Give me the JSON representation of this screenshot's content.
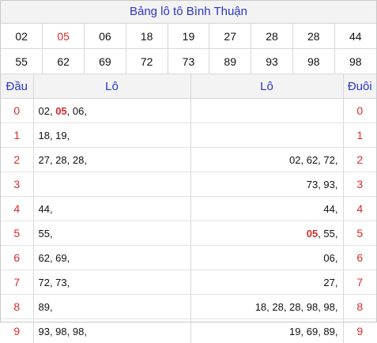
{
  "title": "Bảng lô tô Bình Thuận",
  "numbers_row1": [
    "02",
    "05",
    "06",
    "18",
    "19",
    "27",
    "28",
    "28",
    "44"
  ],
  "numbers_row2": [
    "55",
    "62",
    "69",
    "72",
    "73",
    "89",
    "93",
    "98",
    "98"
  ],
  "highlight": "05",
  "headers": {
    "dau": "Đầu",
    "lo_left": "Lô",
    "lo_right": "Lô",
    "duoi": "Đuôi"
  },
  "rows": [
    {
      "dau": "0",
      "lo_left": "02, 05, 06,",
      "lo_right": "",
      "duoi": "0"
    },
    {
      "dau": "1",
      "lo_left": "18, 19,",
      "lo_right": "",
      "duoi": "1"
    },
    {
      "dau": "2",
      "lo_left": "27, 28, 28,",
      "lo_right": "02, 62, 72,",
      "duoi": "2"
    },
    {
      "dau": "3",
      "lo_left": "",
      "lo_right": "73, 93,",
      "duoi": "3"
    },
    {
      "dau": "4",
      "lo_left": "44,",
      "lo_right": "44,",
      "duoi": "4"
    },
    {
      "dau": "5",
      "lo_left": "55,",
      "lo_right": "05, 55,",
      "duoi": "5"
    },
    {
      "dau": "6",
      "lo_left": "62, 69,",
      "lo_right": "06,",
      "duoi": "6"
    },
    {
      "dau": "7",
      "lo_left": "72, 73,",
      "lo_right": "27,",
      "duoi": "7"
    },
    {
      "dau": "8",
      "lo_left": "89,",
      "lo_right": "18, 28, 28, 98, 98,",
      "duoi": "8"
    },
    {
      "dau": "9",
      "lo_left": "93, 98, 98,",
      "lo_right": "19, 69, 89,",
      "duoi": "9"
    }
  ],
  "colors": {
    "title_blue": "#2b36c4",
    "accent_red": "#d92b2b",
    "header_bg": "#f3f3f3"
  }
}
